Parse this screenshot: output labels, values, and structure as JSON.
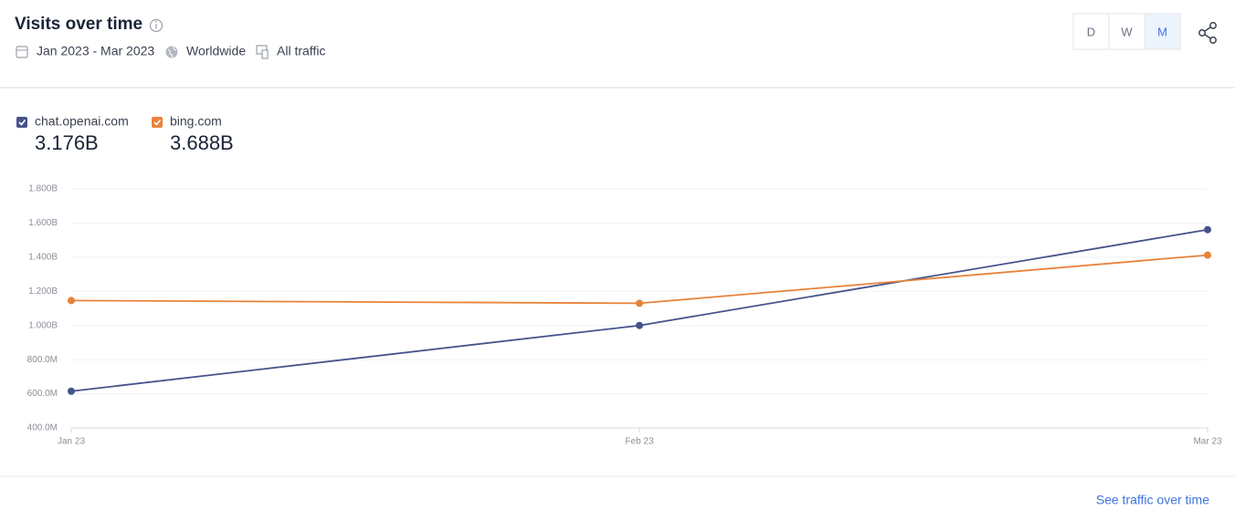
{
  "header": {
    "date_range": "Jan 2023 - Mar 2023",
    "region": "Worldwide",
    "traffic": "All traffic"
  },
  "controls": {
    "granularity": [
      "D",
      "W",
      "M"
    ],
    "active": 2
  },
  "footer": {
    "link": "See traffic over time"
  },
  "chart_data": {
    "type": "line",
    "title": "Visits over time",
    "categories": [
      "Jan 23",
      "Feb 23",
      "Mar 23"
    ],
    "series": [
      {
        "name": "chat.openai.com",
        "color": "#46538a",
        "total": "3.176B",
        "values": [
          615000000,
          1000000000,
          1561000000
        ]
      },
      {
        "name": "bing.com",
        "color": "#e8833a",
        "total": "3.688B",
        "values": [
          1146000000,
          1130000000,
          1412000000
        ]
      }
    ],
    "ylim": [
      400000000,
      1800000000
    ],
    "yticks": [
      {
        "value": 400000000,
        "label": "400.0M"
      },
      {
        "value": 600000000,
        "label": "600.0M"
      },
      {
        "value": 800000000,
        "label": "800.0M"
      },
      {
        "value": 1000000000,
        "label": "1.000B"
      },
      {
        "value": 1200000000,
        "label": "1.200B"
      },
      {
        "value": 1400000000,
        "label": "1.400B"
      },
      {
        "value": 1600000000,
        "label": "1.600B"
      },
      {
        "value": 1800000000,
        "label": "1.800B"
      }
    ],
    "grid": true
  }
}
